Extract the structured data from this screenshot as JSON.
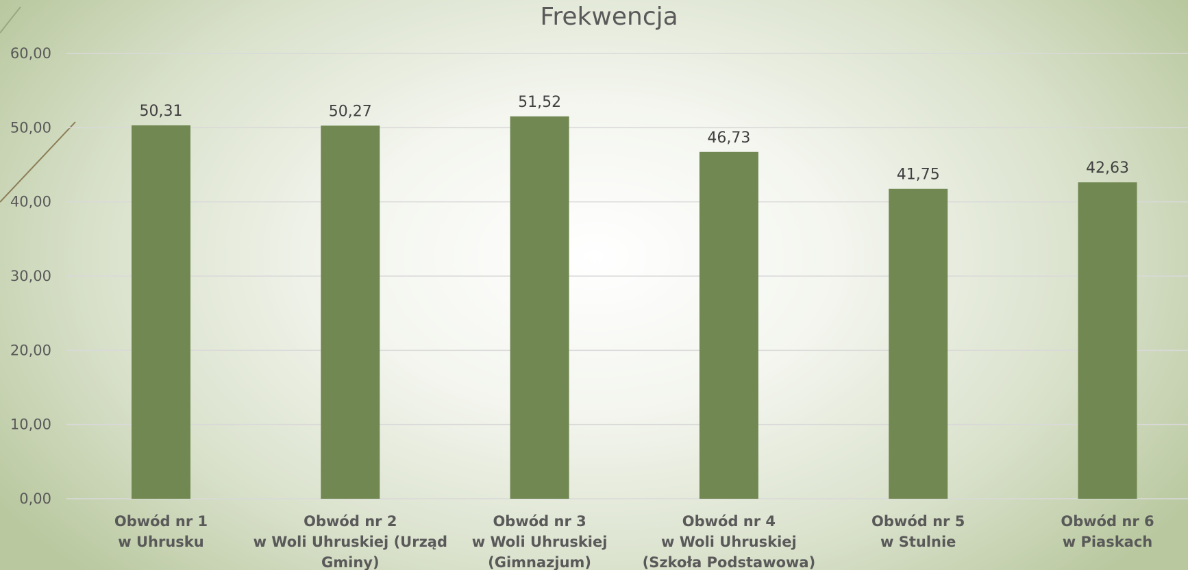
{
  "chart_data": {
    "type": "bar",
    "title": "Frekwencja",
    "categories": [
      [
        "Obwód nr 1",
        "w Uhrusku"
      ],
      [
        "Obwód nr 2",
        "w Woli Uhruskiej (Urząd",
        "Gminy)"
      ],
      [
        "Obwód nr 3",
        "w Woli Uhruskiej",
        "(Gimnazjum)"
      ],
      [
        "Obwód nr 4",
        "w Woli Uhruskiej",
        "(Szkoła Podstawowa)"
      ],
      [
        "Obwód nr 5",
        "w Stulnie"
      ],
      [
        "Obwód nr 6",
        "w Piaskach"
      ]
    ],
    "values": [
      50.31,
      50.27,
      51.52,
      46.73,
      41.75,
      42.63
    ],
    "data_labels": [
      "50,31",
      "50,27",
      "51,52",
      "46,73",
      "41,75",
      "42,63"
    ],
    "y_ticks": [
      "0,00",
      "10,00",
      "20,00",
      "30,00",
      "40,00",
      "50,00",
      "60,00"
    ],
    "ylim": [
      0,
      60
    ],
    "xlabel": "",
    "ylabel": "",
    "grid": true,
    "legend": "none",
    "colors": {
      "bar": "#718852",
      "grid": "#d9d9d9",
      "text": "#595959"
    }
  }
}
